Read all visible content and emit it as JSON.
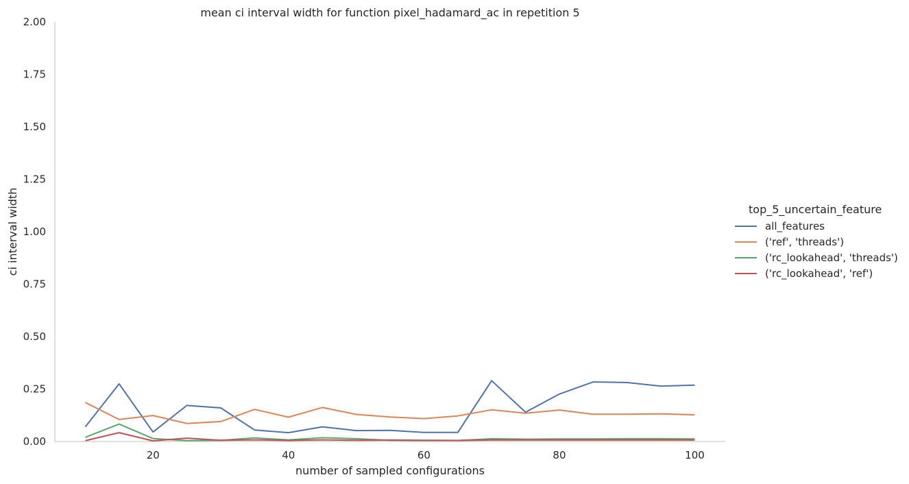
{
  "chart_data": {
    "type": "line",
    "title": "mean ci interval width for function pixel_hadamard_ac in repetition 5",
    "xlabel": "number of sampled configurations",
    "ylabel": "ci interval width",
    "xlim": [
      5.5,
      104.5
    ],
    "ylim": [
      0,
      2.0
    ],
    "xticks": [
      20,
      40,
      60,
      80,
      100
    ],
    "xtick_labels": [
      "20",
      "40",
      "60",
      "80",
      "100"
    ],
    "yticks": [
      0,
      0.25,
      0.5,
      0.75,
      1.0,
      1.25,
      1.5,
      1.75,
      2.0
    ],
    "ytick_labels": [
      "0.00",
      "0.25",
      "0.50",
      "0.75",
      "1.00",
      "1.25",
      "1.50",
      "1.75",
      "2.00"
    ],
    "grid": false,
    "legend": {
      "title": "top_5_uncertain_feature",
      "placement": "right"
    },
    "x": [
      10,
      15,
      20,
      25,
      30,
      35,
      40,
      45,
      50,
      55,
      60,
      65,
      70,
      75,
      80,
      85,
      90,
      95,
      100
    ],
    "series": [
      {
        "name": "all_features",
        "color": "#4c72b0",
        "values": [
          0.07,
          0.275,
          0.045,
          0.172,
          0.16,
          0.055,
          0.042,
          0.07,
          0.052,
          0.053,
          0.043,
          0.043,
          0.29,
          0.14,
          0.226,
          0.284,
          0.281,
          0.264,
          0.269
        ]
      },
      {
        "name": "('ref', 'threads')",
        "color": "#dd8452",
        "values": [
          0.186,
          0.105,
          0.124,
          0.086,
          0.095,
          0.153,
          0.116,
          0.162,
          0.129,
          0.117,
          0.109,
          0.122,
          0.151,
          0.135,
          0.15,
          0.13,
          0.13,
          0.132,
          0.127
        ]
      },
      {
        "name": "('rc_lookahead', 'threads')",
        "color": "#55a868",
        "values": [
          0.02,
          0.083,
          0.014,
          0.004,
          0.006,
          0.017,
          0.008,
          0.018,
          0.013,
          0.006,
          0.005,
          0.005,
          0.013,
          0.011,
          0.012,
          0.012,
          0.013,
          0.013,
          0.012
        ]
      },
      {
        "name": "('rc_lookahead', 'ref')",
        "color": "#c44e52",
        "values": [
          0.004,
          0.042,
          0.003,
          0.016,
          0.006,
          0.008,
          0.005,
          0.008,
          0.006,
          0.007,
          0.006,
          0.005,
          0.007,
          0.007,
          0.007,
          0.007,
          0.007,
          0.007,
          0.007
        ]
      }
    ]
  }
}
